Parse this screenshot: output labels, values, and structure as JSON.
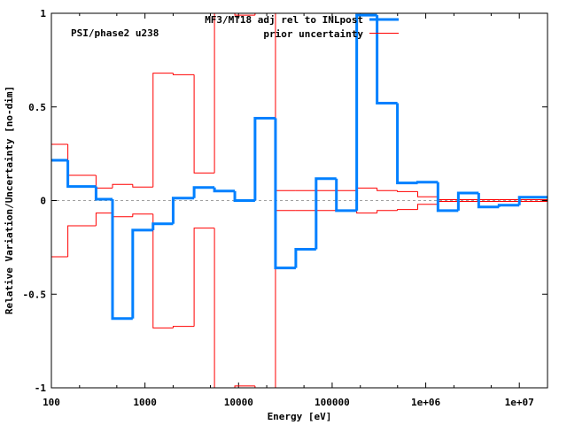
{
  "chart_data": {
    "type": "line",
    "step": true,
    "annotation": "PSI/phase2 u238",
    "xlabel": "Energy [eV]",
    "ylabel": "Relative Variation/Uncertainty [no-dim]",
    "xscale": "log",
    "xlim": [
      100,
      20000000
    ],
    "ylim": [
      -1,
      1
    ],
    "xticks": [
      100,
      1000,
      10000,
      100000,
      1000000,
      10000000
    ],
    "xtick_labels": [
      "100",
      "1000",
      "10000",
      "100000",
      "1e+06",
      "1e+07"
    ],
    "yticks": [
      -1,
      -0.5,
      0,
      0.5,
      1
    ],
    "ytick_labels": [
      "-1",
      "-0.5",
      "0",
      "0.5",
      "1"
    ],
    "zero_line": "dotted grey",
    "legend_position": "top-center",
    "bin_edges": [
      100,
      150,
      300,
      450,
      740,
      1220,
      2000,
      3350,
      5530,
      9120,
      15000,
      24800,
      40900,
      67400,
      111000,
      183000,
      302000,
      498000,
      821000,
      1350000,
      2230000,
      3680000,
      6070000,
      10000000,
      20000000
    ],
    "series": [
      {
        "name": "MF3/MT18 adj rel to INLpost",
        "color": "#0080ff",
        "style": "thick",
        "values": [
          0.215,
          0.075,
          0.007,
          -0.63,
          -0.158,
          -0.124,
          0.013,
          0.07,
          0.051,
          0,
          0.44,
          -0.36,
          -0.26,
          0.117,
          -0.054,
          0.99,
          0.52,
          0.094,
          0.098,
          -0.054,
          0.04,
          -0.034,
          -0.025,
          0.018
        ]
      },
      {
        "name": "prior uncertainty",
        "color": "#ff0000",
        "style": "thin",
        "symmetric": true,
        "values": [
          0.3,
          0.135,
          0.067,
          0.086,
          0.072,
          0.68,
          0.672,
          0.147,
          1.5,
          0.99,
          1.5,
          0.053,
          0.053,
          0.053,
          0.053,
          0.067,
          0.053,
          0.048,
          0.02,
          0.005,
          0.005,
          0.005,
          0.005,
          0.005
        ]
      }
    ]
  }
}
